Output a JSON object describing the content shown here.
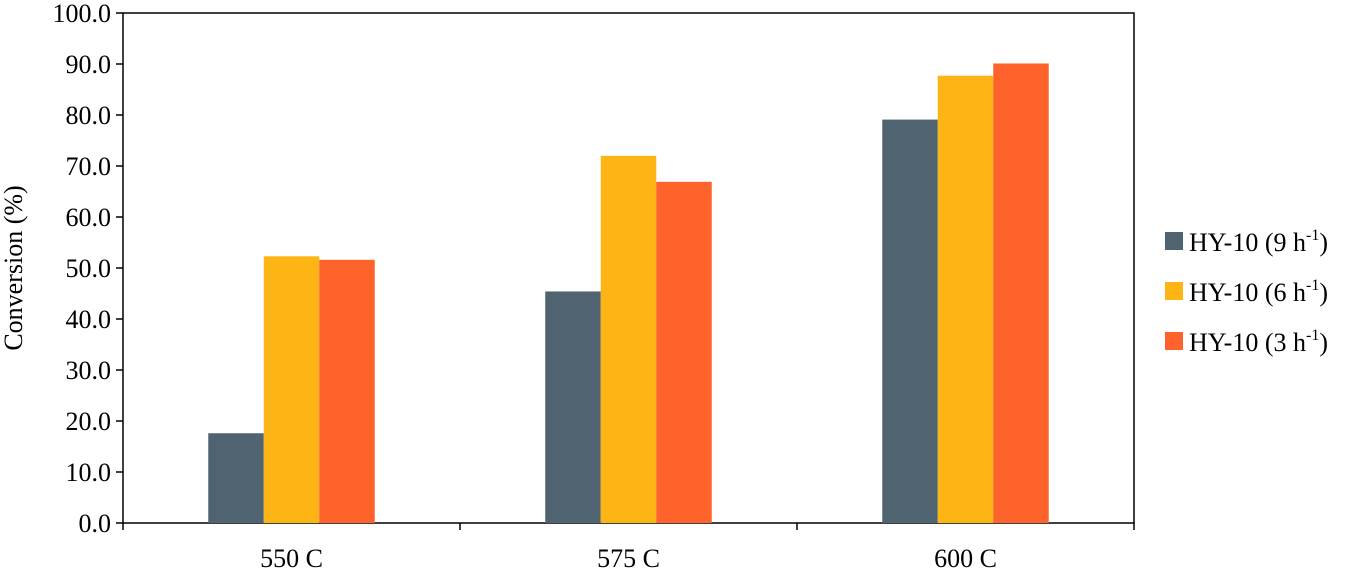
{
  "chart_data": {
    "type": "bar",
    "title": "",
    "xlabel": "",
    "ylabel": "Conversion (%)",
    "ylim": [
      0,
      100
    ],
    "yticks": [
      "0.0",
      "10.0",
      "20.0",
      "30.0",
      "40.0",
      "50.0",
      "60.0",
      "70.0",
      "80.0",
      "90.0",
      "100.0"
    ],
    "categories": [
      "550 C",
      "575 C",
      "600 C"
    ],
    "series": [
      {
        "name": "HY-10 (9 h",
        "sup": "-1",
        "suffix": ")",
        "color": "#4f6370",
        "values": [
          17.6,
          45.4,
          79.1
        ]
      },
      {
        "name": "HY-10 (6 h",
        "sup": "-1",
        "suffix": ")",
        "color": "#fdb515",
        "values": [
          52.3,
          72.0,
          87.7
        ]
      },
      {
        "name": "HY-10 (3 h",
        "sup": "-1",
        "suffix": ")",
        "color": "#fd632a",
        "values": [
          51.6,
          66.9,
          90.1
        ]
      }
    ],
    "grid": false,
    "legend_position": "right"
  }
}
